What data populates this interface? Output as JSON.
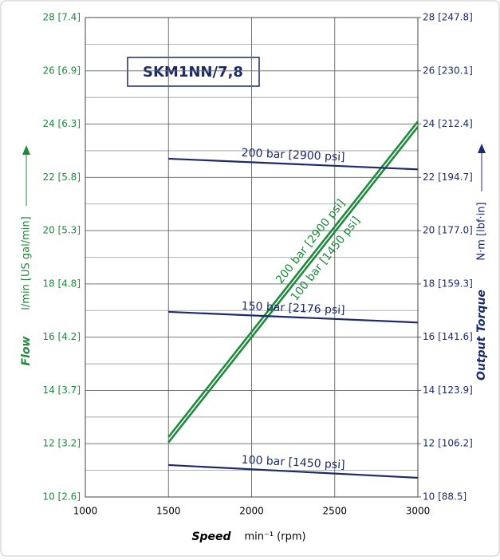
{
  "chart_data": {
    "type": "line",
    "title": "SKM1NN/7,8",
    "x_label": "Speed",
    "x_unit": "min⁻¹ (rpm)",
    "y_label": "Flow",
    "y_unit": "l/min  [US gal/min]",
    "y2_label": "Output Torque",
    "y2_unit": "N·m  [lbf·in]",
    "x": [
      1500,
      3000
    ],
    "xlim": [
      1000,
      3000
    ],
    "xticks": [
      1000,
      1500,
      2000,
      2500,
      3000
    ],
    "ylim": [
      10,
      28
    ],
    "yticks": [
      {
        "value": 10,
        "label": "10 [2.6]"
      },
      {
        "value": 12,
        "label": "12 [3.2]"
      },
      {
        "value": 14,
        "label": "14 [3.7]"
      },
      {
        "value": 16,
        "label": "16 [4.2]"
      },
      {
        "value": 18,
        "label": "18 [4.8]"
      },
      {
        "value": 20,
        "label": "20 [5.3]"
      },
      {
        "value": 22,
        "label": "22 [5.8]"
      },
      {
        "value": 24,
        "label": "24 [6.3]"
      },
      {
        "value": 26,
        "label": "26 [6.9]"
      },
      {
        "value": 28,
        "label": "28 [7.4]"
      }
    ],
    "y_minor_ticks": [
      11,
      13,
      15,
      17,
      19,
      21,
      23,
      25,
      27
    ],
    "y2lim": [
      10,
      28
    ],
    "y2ticks": [
      {
        "value": 10,
        "label": "10 [88.5]"
      },
      {
        "value": 12,
        "label": "12 [106.2]"
      },
      {
        "value": 14,
        "label": "14 [123.9]"
      },
      {
        "value": 16,
        "label": "16 [141.6]"
      },
      {
        "value": 18,
        "label": "18 [159.3]"
      },
      {
        "value": 20,
        "label": "20 [177.0]"
      },
      {
        "value": 22,
        "label": "22 [194.7]"
      },
      {
        "value": 24,
        "label": "24 [212.4]"
      },
      {
        "value": 26,
        "label": "26 [230.1]"
      },
      {
        "value": 28,
        "label": "28 [247.8]"
      }
    ],
    "grid": true,
    "series": [
      {
        "name": "200 bar [2900 psi]",
        "color": "#1f8a3c",
        "axis": "y",
        "values": [
          12.25,
          24.1
        ]
      },
      {
        "name": "100 bar [1450 psi]",
        "color": "#1f8a3c",
        "axis": "y",
        "values": [
          12.05,
          23.9
        ]
      },
      {
        "name": "200 bar [2900 psi]",
        "color": "#1b2a6b",
        "axis": "y2",
        "values": [
          22.7,
          22.3
        ]
      },
      {
        "name": "150 bar [2176 psi]",
        "color": "#1b2a6b",
        "axis": "y2",
        "values": [
          16.95,
          16.55
        ]
      },
      {
        "name": "100 bar [1450 psi]",
        "color": "#1b2a6b",
        "axis": "y2",
        "values": [
          11.2,
          10.72
        ]
      }
    ]
  }
}
